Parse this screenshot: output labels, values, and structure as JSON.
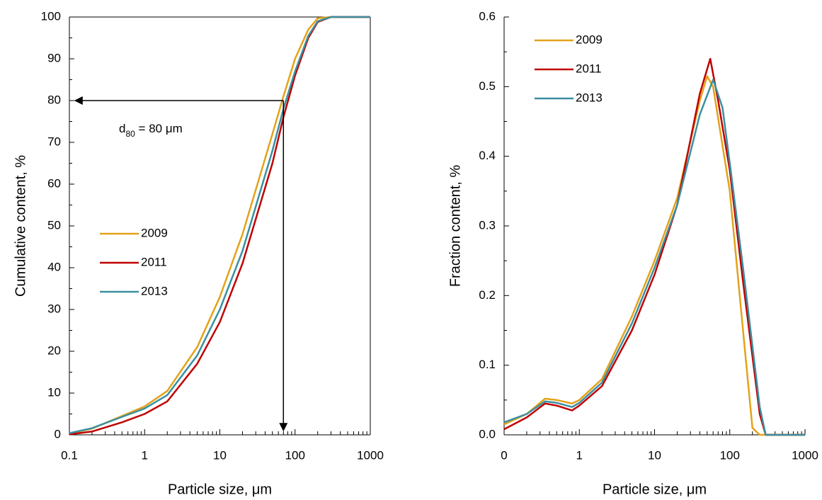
{
  "chart_data": [
    {
      "type": "line",
      "x_label": "Particle size, μm",
      "y_label": "Cumulative content,  %",
      "xlog": true,
      "xlim": [
        0.1,
        1000
      ],
      "xticks": [
        0.1,
        1,
        10,
        100,
        1000
      ],
      "ylim": [
        0,
        100
      ],
      "yticks": [
        0,
        10,
        20,
        30,
        40,
        50,
        60,
        70,
        80,
        90,
        100
      ],
      "box": true,
      "legend": "center-left",
      "annotation": {
        "base": "d",
        "subscript": "80",
        "text": " = 80 μm"
      },
      "arrow": {
        "x": 70,
        "y": 80
      },
      "series": [
        {
          "name": "2009",
          "color": "#e3a21a",
          "x": [
            0.1,
            0.2,
            0.5,
            1,
            2,
            5,
            10,
            20,
            50,
            70,
            100,
            150,
            200,
            300,
            1000
          ],
          "values": [
            0.3,
            1.5,
            4.5,
            6.8,
            10.5,
            21,
            33,
            48,
            72,
            81,
            90,
            97,
            99.7,
            100,
            100
          ]
        },
        {
          "name": "2011",
          "color": "#c00000",
          "x": [
            0.1,
            0.2,
            0.5,
            1,
            2,
            5,
            10,
            20,
            50,
            70,
            100,
            150,
            200,
            300,
            1000
          ],
          "values": [
            0.1,
            0.8,
            3,
            5,
            8,
            17,
            27,
            41,
            65,
            76,
            86,
            95,
            98.8,
            100,
            100
          ]
        },
        {
          "name": "2013",
          "color": "#3b8fa0",
          "x": [
            0.1,
            0.2,
            0.5,
            1,
            2,
            5,
            10,
            20,
            50,
            70,
            100,
            150,
            200,
            300,
            1000
          ],
          "values": [
            0.4,
            1.6,
            4.3,
            6.3,
            9.5,
            19,
            30,
            44,
            68,
            78,
            87,
            95.5,
            99,
            100,
            100
          ]
        }
      ]
    },
    {
      "type": "line",
      "x_label": "Particle size, μm",
      "y_label": "Fraction content,  %",
      "xlog": true,
      "xlim": [
        0.1,
        1000
      ],
      "xticks": [
        {
          "value": 0.1,
          "label": "0"
        },
        1,
        10,
        100,
        1000
      ],
      "ylim": [
        0,
        0.6
      ],
      "yticks": [
        {
          "value": 0,
          "label": "0.0"
        },
        0.1,
        0.2,
        0.3,
        0.4,
        0.5,
        0.6
      ],
      "box": false,
      "legend": "upper-left",
      "series": [
        {
          "name": "2009",
          "color": "#e3a21a",
          "x": [
            0.1,
            0.2,
            0.35,
            0.5,
            0.8,
            1,
            2,
            5,
            10,
            20,
            40,
            50,
            60,
            100,
            150,
            200,
            250,
            1000
          ],
          "values": [
            0.015,
            0.03,
            0.052,
            0.05,
            0.045,
            0.05,
            0.08,
            0.17,
            0.25,
            0.34,
            0.48,
            0.515,
            0.5,
            0.35,
            0.15,
            0.01,
            0,
            0
          ]
        },
        {
          "name": "2011",
          "color": "#c00000",
          "x": [
            0.1,
            0.2,
            0.35,
            0.5,
            0.8,
            1,
            2,
            5,
            10,
            20,
            40,
            55,
            70,
            100,
            150,
            250,
            300,
            1000
          ],
          "values": [
            0.008,
            0.025,
            0.045,
            0.042,
            0.035,
            0.042,
            0.07,
            0.15,
            0.23,
            0.33,
            0.49,
            0.54,
            0.48,
            0.38,
            0.22,
            0.03,
            0,
            0
          ]
        },
        {
          "name": "2013",
          "color": "#3b8fa0",
          "x": [
            0.1,
            0.2,
            0.35,
            0.5,
            0.8,
            1,
            2,
            5,
            10,
            20,
            40,
            60,
            80,
            100,
            150,
            250,
            300,
            1000
          ],
          "values": [
            0.018,
            0.03,
            0.048,
            0.046,
            0.04,
            0.046,
            0.075,
            0.16,
            0.24,
            0.33,
            0.46,
            0.51,
            0.47,
            0.39,
            0.24,
            0.04,
            0,
            0
          ]
        }
      ]
    }
  ]
}
